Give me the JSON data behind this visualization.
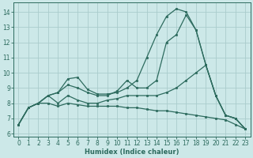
{
  "xlabel": "Humidex (Indice chaleur)",
  "bg_color": "#cce8e8",
  "grid_color": "#aacccc",
  "line_color": "#2d6b5e",
  "xlim": [
    -0.5,
    23.5
  ],
  "ylim": [
    5.8,
    14.6
  ],
  "xticks": [
    0,
    1,
    2,
    3,
    4,
    5,
    6,
    7,
    8,
    9,
    10,
    11,
    12,
    13,
    14,
    15,
    16,
    17,
    18,
    19,
    20,
    21,
    22,
    23
  ],
  "yticks": [
    6,
    7,
    8,
    9,
    10,
    11,
    12,
    13,
    14
  ],
  "lines": [
    {
      "x": [
        0,
        1,
        2,
        3,
        4,
        5,
        6,
        7,
        8,
        9,
        10,
        11,
        12,
        13,
        14,
        15,
        16,
        17,
        18,
        19,
        20,
        21,
        22,
        23
      ],
      "y": [
        6.6,
        7.7,
        8.0,
        8.5,
        8.7,
        9.6,
        9.7,
        8.9,
        8.6,
        8.6,
        8.7,
        9.0,
        9.5,
        11.0,
        12.5,
        13.7,
        14.2,
        14.0,
        12.8,
        10.5,
        8.5,
        7.2,
        7.0,
        6.3
      ]
    },
    {
      "x": [
        0,
        1,
        2,
        3,
        4,
        5,
        6,
        7,
        8,
        9,
        10,
        11,
        12,
        13,
        14,
        15,
        16,
        17,
        18,
        19,
        20,
        21,
        22,
        23
      ],
      "y": [
        6.6,
        7.7,
        8.0,
        8.5,
        8.7,
        9.2,
        9.0,
        8.7,
        8.5,
        8.5,
        8.8,
        9.5,
        9.0,
        9.0,
        9.5,
        12.0,
        12.5,
        13.8,
        12.8,
        10.5,
        8.5,
        7.2,
        7.0,
        6.3
      ]
    },
    {
      "x": [
        0,
        1,
        2,
        3,
        4,
        5,
        6,
        7,
        8,
        9,
        10,
        11,
        12,
        13,
        14,
        15,
        16,
        17,
        18,
        19,
        20,
        21,
        22,
        23
      ],
      "y": [
        6.6,
        7.7,
        8.0,
        8.5,
        8.0,
        8.5,
        8.2,
        8.0,
        8.0,
        8.2,
        8.3,
        8.5,
        8.5,
        8.5,
        8.5,
        8.7,
        9.0,
        9.5,
        10.0,
        10.5,
        8.5,
        7.2,
        7.0,
        6.3
      ]
    },
    {
      "x": [
        0,
        1,
        2,
        3,
        4,
        5,
        6,
        7,
        8,
        9,
        10,
        11,
        12,
        13,
        14,
        15,
        16,
        17,
        18,
        19,
        20,
        21,
        22,
        23
      ],
      "y": [
        6.6,
        7.7,
        8.0,
        8.0,
        7.8,
        8.0,
        7.9,
        7.8,
        7.8,
        7.8,
        7.8,
        7.7,
        7.7,
        7.6,
        7.5,
        7.5,
        7.4,
        7.3,
        7.2,
        7.1,
        7.0,
        6.9,
        6.6,
        6.3
      ]
    }
  ]
}
